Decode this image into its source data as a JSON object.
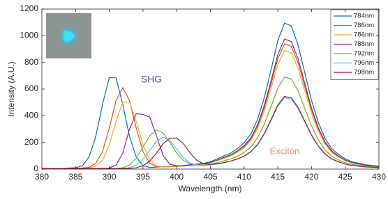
{
  "chart_data": {
    "type": "line",
    "xlabel": "Wavelength (nm)",
    "ylabel": "Intensity (A.U.)",
    "annotations": [
      {
        "text": "SHG",
        "color": "#3a55b4"
      },
      {
        "text": "Exciton",
        "color": "#f08a8a"
      }
    ],
    "x": [
      380,
      381,
      382,
      383,
      384,
      385,
      386,
      387,
      388,
      389,
      390,
      391,
      392,
      393,
      394,
      395,
      396,
      397,
      398,
      399,
      400,
      401,
      402,
      403,
      404,
      405,
      406,
      407,
      408,
      409,
      410,
      411,
      412,
      413,
      414,
      415,
      416,
      417,
      418,
      419,
      420,
      421,
      422,
      423,
      424,
      425,
      426,
      427,
      428,
      429,
      430
    ],
    "series": [
      {
        "name": "784nm",
        "color": "#0072BD",
        "values": [
          5,
          5,
          5,
          5,
          8,
          10,
          25,
          90,
          245,
          485,
          685,
          685,
          485,
          245,
          90,
          25,
          12,
          15,
          18,
          20,
          22,
          27,
          33,
          38,
          44,
          55,
          77,
          99,
          120,
          153,
          197,
          263,
          372,
          537,
          745,
          964,
          1095,
          1073,
          931,
          723,
          515,
          350,
          230,
          153,
          110,
          77,
          55,
          44,
          33,
          27,
          22
        ]
      },
      {
        "name": "786nm",
        "color": "#D95319",
        "values": [
          5,
          5,
          5,
          5,
          5,
          6,
          8,
          13,
          43,
          132,
          308,
          514,
          610,
          514,
          308,
          132,
          45,
          18,
          16,
          18,
          19,
          24,
          28,
          33,
          38,
          47,
          66,
          85,
          103,
          132,
          169,
          226,
          320,
          461,
          639,
          827,
          940,
          921,
          799,
          620,
          442,
          301,
          197,
          132,
          94,
          66,
          47,
          38,
          28,
          24,
          19
        ]
      },
      {
        "name": "786nm",
        "color": "#EDB120",
        "values": [
          5,
          5,
          5,
          5,
          5,
          5,
          5,
          8,
          21,
          67,
          181,
          358,
          503,
          503,
          358,
          181,
          67,
          25,
          15,
          16,
          18,
          22,
          27,
          31,
          36,
          45,
          62,
          80,
          98,
          125,
          160,
          214,
          303,
          436,
          605,
          783,
          890,
          872,
          757,
          587,
          418,
          285,
          187,
          125,
          89,
          62,
          45,
          36,
          27,
          22,
          18
        ]
      },
      {
        "name": "788nm",
        "color": "#7E2F8E",
        "values": [
          5,
          5,
          5,
          5,
          5,
          5,
          5,
          5,
          5,
          5,
          8,
          30,
          120,
          300,
          415,
          410,
          390,
          250,
          100,
          35,
          25,
          25,
          30,
          35,
          40,
          50,
          68,
          88,
          107,
          137,
          176,
          234,
          332,
          478,
          663,
          858,
          975,
          956,
          829,
          644,
          458,
          312,
          205,
          137,
          98,
          68,
          49,
          39,
          29,
          24,
          20
        ]
      },
      {
        "name": "792nm",
        "color": "#77AC30",
        "values": [
          5,
          5,
          5,
          5,
          5,
          5,
          5,
          5,
          5,
          5,
          5,
          5,
          10,
          30,
          80,
          165,
          250,
          295,
          270,
          200,
          120,
          65,
          40,
          30,
          30,
          35,
          48,
          62,
          76,
          97,
          124,
          166,
          235,
          338,
          469,
          607,
          690,
          676,
          587,
          455,
          324,
          221,
          145,
          97,
          69,
          48,
          35,
          28,
          21,
          17,
          14
        ]
      },
      {
        "name": "796nm",
        "color": "#4DBEEE",
        "values": [
          5,
          5,
          5,
          5,
          5,
          5,
          5,
          5,
          5,
          5,
          5,
          5,
          5,
          10,
          30,
          75,
          140,
          210,
          240,
          215,
          150,
          85,
          45,
          30,
          25,
          30,
          37,
          48,
          59,
          75,
          96,
          128,
          182,
          262,
          364,
          471,
          535,
          524,
          455,
          353,
          251,
          171,
          112,
          75,
          54,
          37,
          27,
          21,
          16,
          13,
          11
        ]
      },
      {
        "name": "798nm",
        "color": "#A2142F",
        "values": [
          5,
          5,
          5,
          5,
          5,
          5,
          5,
          5,
          5,
          5,
          5,
          5,
          5,
          5,
          10,
          25,
          60,
          120,
          190,
          232,
          232,
          190,
          120,
          65,
          40,
          35,
          40,
          49,
          60,
          76,
          98,
          131,
          185,
          267,
          371,
          480,
          545,
          534,
          463,
          360,
          256,
          174,
          114,
          76,
          55,
          38,
          27,
          22,
          16,
          14,
          11
        ]
      }
    ],
    "xlim": [
      380,
      430
    ],
    "xticks": [
      380,
      385,
      390,
      395,
      400,
      405,
      410,
      415,
      420,
      425,
      430
    ],
    "ylim": [
      0,
      1200
    ],
    "yticks": [
      0,
      200,
      400,
      600,
      800,
      1000,
      1200
    ],
    "legend": "top-right"
  }
}
